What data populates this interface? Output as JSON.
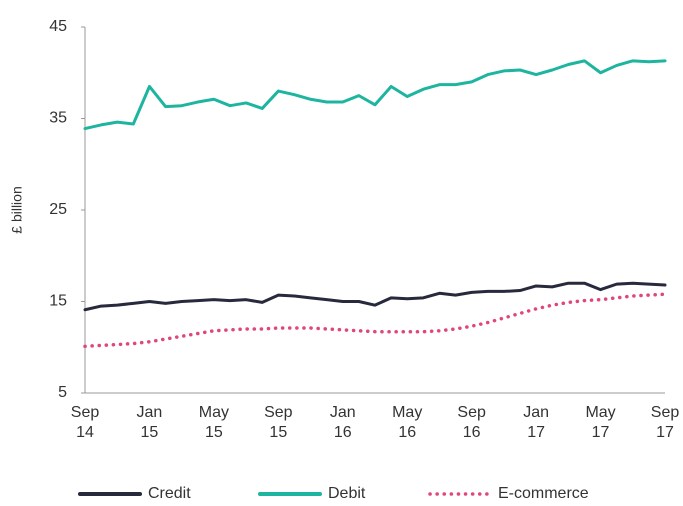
{
  "chart_data": {
    "type": "line",
    "y_label": "£ billion",
    "categories": [
      "Sep 14",
      null,
      null,
      null,
      "Jan 15",
      null,
      null,
      null,
      "May 15",
      null,
      null,
      null,
      "Sep 15",
      null,
      null,
      null,
      "Jan 16",
      null,
      null,
      null,
      "May 16",
      null,
      null,
      null,
      "Sep 16",
      null,
      null,
      null,
      "Jan 17",
      null,
      null,
      null,
      "May 17",
      null,
      null,
      null,
      "Sep 17"
    ],
    "series": [
      {
        "name": "Credit",
        "color": "#272a3d",
        "line_style": "solid",
        "values": [
          14.1,
          14.5,
          14.6,
          14.8,
          15.0,
          14.8,
          15.0,
          15.1,
          15.2,
          15.1,
          15.2,
          14.9,
          15.7,
          15.6,
          15.4,
          15.2,
          15.0,
          15.0,
          14.6,
          15.4,
          15.3,
          15.4,
          15.9,
          15.7,
          16.0,
          16.1,
          16.1,
          16.2,
          16.7,
          16.6,
          17.0,
          17.0,
          16.3,
          16.9,
          17.0,
          16.9,
          16.8
        ]
      },
      {
        "name": "Debit",
        "color": "#1db5a0",
        "line_style": "solid",
        "values": [
          33.9,
          34.3,
          34.6,
          34.4,
          38.5,
          36.3,
          36.4,
          36.8,
          37.1,
          36.4,
          36.7,
          36.1,
          38.0,
          37.6,
          37.1,
          36.8,
          36.8,
          37.5,
          36.5,
          38.5,
          37.4,
          38.2,
          38.7,
          38.7,
          39.0,
          39.8,
          40.2,
          40.3,
          39.8,
          40.3,
          40.9,
          41.3,
          40.0,
          40.8,
          41.3,
          41.2,
          41.3
        ]
      },
      {
        "name": "E-commerce",
        "color": "#e0457b",
        "line_style": "dotted",
        "values": [
          10.1,
          10.2,
          10.3,
          10.4,
          10.6,
          10.9,
          11.2,
          11.5,
          11.8,
          11.9,
          12.0,
          12.0,
          12.1,
          12.1,
          12.1,
          12.0,
          11.9,
          11.8,
          11.7,
          11.7,
          11.7,
          11.7,
          11.8,
          12.0,
          12.3,
          12.7,
          13.2,
          13.7,
          14.2,
          14.6,
          14.9,
          15.1,
          15.2,
          15.4,
          15.6,
          15.7,
          15.8
        ]
      }
    ],
    "ylim": [
      5,
      45
    ],
    "yticks": [
      5,
      15,
      25,
      35,
      45
    ],
    "grid": false,
    "legend": "bottom"
  }
}
